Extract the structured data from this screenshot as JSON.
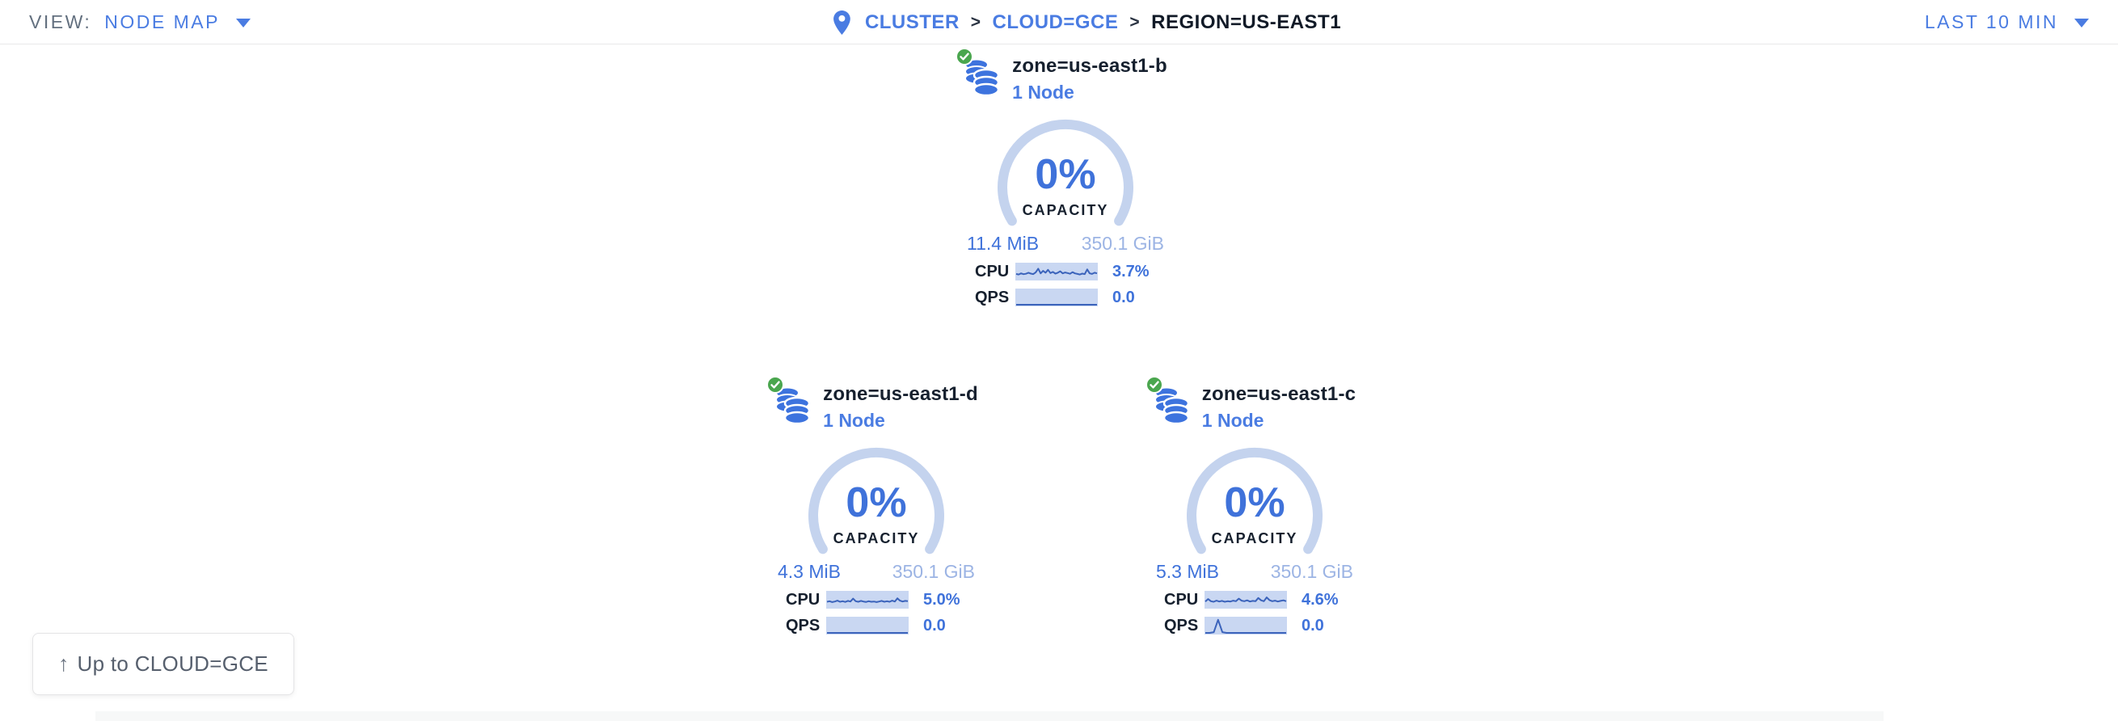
{
  "toolbar": {
    "view_label": "VIEW:",
    "view_value": "NODE MAP",
    "time_range": "LAST 10 MIN"
  },
  "breadcrumb": {
    "separator": ">",
    "items": [
      {
        "label": "CLUSTER",
        "type": "link"
      },
      {
        "label": "CLOUD=GCE",
        "type": "link"
      },
      {
        "label": "REGION=US-EAST1",
        "type": "current"
      }
    ]
  },
  "zones": [
    {
      "name": "zone=us-east1-b",
      "node_count": "1 Node",
      "status": "healthy",
      "capacity_pct": "0%",
      "capacity_label": "CAPACITY",
      "capacity_used": "11.4 MiB",
      "capacity_total": "350.1 GiB",
      "cpu_label": "CPU",
      "cpu_value": "3.7%",
      "qps_label": "QPS",
      "qps_value": "0.0",
      "cpu_spark": [
        0.34,
        0.3,
        0.38,
        0.32,
        0.35,
        0.42,
        0.36,
        0.33,
        0.45,
        0.7,
        0.38,
        0.55,
        0.42,
        0.62,
        0.4,
        0.48,
        0.36,
        0.42,
        0.52,
        0.38,
        0.44,
        0.4,
        0.35,
        0.46,
        0.38,
        0.34,
        0.3,
        0.36,
        0.33,
        0.65,
        0.38,
        0.34,
        0.42,
        0.38
      ],
      "qps_spark": [
        0,
        0,
        0,
        0,
        0,
        0,
        0,
        0,
        0,
        0,
        0,
        0,
        0,
        0,
        0,
        0,
        0,
        0,
        0,
        0
      ]
    },
    {
      "name": "zone=us-east1-d",
      "node_count": "1 Node",
      "status": "healthy",
      "capacity_pct": "0%",
      "capacity_label": "CAPACITY",
      "capacity_used": "4.3 MiB",
      "capacity_total": "350.1 GiB",
      "cpu_label": "CPU",
      "cpu_value": "5.0%",
      "qps_label": "QPS",
      "qps_value": "0.0",
      "cpu_spark": [
        0.36,
        0.4,
        0.34,
        0.38,
        0.44,
        0.36,
        0.4,
        0.35,
        0.42,
        0.38,
        0.58,
        0.4,
        0.36,
        0.42,
        0.38,
        0.35,
        0.4,
        0.36,
        0.38,
        0.34,
        0.38,
        0.42,
        0.36,
        0.4,
        0.36,
        0.44,
        0.38,
        0.6,
        0.44,
        0.38,
        0.42,
        0.4
      ],
      "qps_spark": [
        0,
        0,
        0,
        0,
        0,
        0,
        0,
        0,
        0,
        0,
        0,
        0,
        0,
        0,
        0,
        0,
        0,
        0,
        0,
        0
      ]
    },
    {
      "name": "zone=us-east1-c",
      "node_count": "1 Node",
      "status": "healthy",
      "capacity_pct": "0%",
      "capacity_label": "CAPACITY",
      "capacity_used": "5.3 MiB",
      "capacity_total": "350.1 GiB",
      "cpu_label": "CPU",
      "cpu_value": "4.6%",
      "qps_label": "QPS",
      "qps_value": "0.0",
      "cpu_spark": [
        0.38,
        0.55,
        0.4,
        0.36,
        0.44,
        0.38,
        0.42,
        0.36,
        0.4,
        0.38,
        0.44,
        0.4,
        0.58,
        0.44,
        0.4,
        0.46,
        0.38,
        0.42,
        0.4,
        0.62,
        0.46,
        0.4,
        0.66,
        0.48,
        0.4,
        0.44,
        0.38,
        0.42,
        0.46,
        0.4
      ],
      "qps_spark": [
        0,
        0,
        0.05,
        0.9,
        0.05,
        0,
        0,
        0,
        0,
        0,
        0,
        0,
        0,
        0,
        0,
        0,
        0,
        0,
        0,
        0
      ]
    }
  ],
  "up_button": {
    "icon": "↑",
    "label": "Up to CLOUD=GCE"
  },
  "colors": {
    "accent": "#3f72da",
    "link": "#4a7ce2",
    "lightblue": "#9cb4e4",
    "dark": "#1b2738",
    "gray": "#63707f",
    "green": "#4aa64e",
    "gauge_arc": "#c4d3ee",
    "spark_bg": "#c9d7f2",
    "spark_line": "#3b63bb"
  }
}
